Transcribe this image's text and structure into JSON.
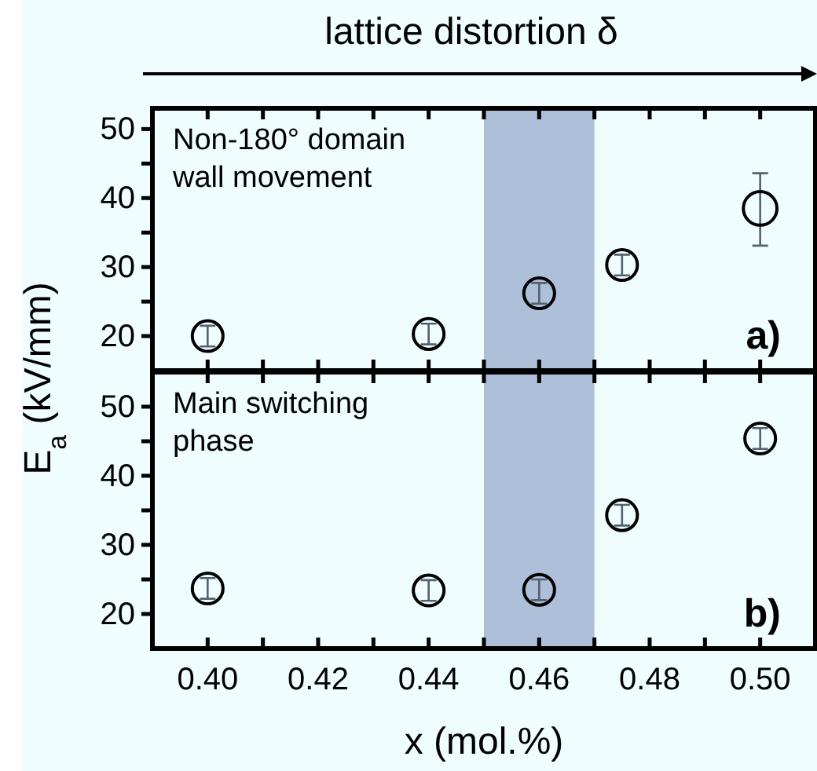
{
  "chart_data": [
    {
      "type": "scatter",
      "title": "lattice distortion δ",
      "annotations": [
        "Non-180° domain\nwall movement",
        "a)"
      ],
      "x": [
        0.4,
        0.44,
        0.46,
        0.475,
        0.5
      ],
      "marker": "circle",
      "tick_labels": "y",
      "xlim": [
        0.39,
        0.51
      ],
      "ylim": [
        15,
        53
      ],
      "xticks": [
        {
          "value": 0.39,
          "label": null
        },
        {
          "value": 0.4,
          "label": null
        },
        {
          "value": 0.41,
          "label": null
        },
        {
          "value": 0.42,
          "label": null
        },
        {
          "value": 0.43,
          "label": null
        },
        {
          "value": 0.44,
          "label": null
        },
        {
          "value": 0.45,
          "label": null
        },
        {
          "value": 0.46,
          "label": null
        },
        {
          "value": 0.47,
          "label": null
        },
        {
          "value": 0.48,
          "label": null
        },
        {
          "value": 0.49,
          "label": null
        },
        {
          "value": 0.5,
          "label": null
        }
      ],
      "yticks": [
        20,
        {
          "value": 25,
          "label": null
        },
        30,
        {
          "value": 35,
          "label": null
        },
        40,
        {
          "value": 45,
          "label": null
        },
        50
      ],
      "bands": [
        {
          "axis": "x",
          "from": 0.45,
          "to": 0.47,
          "color": "#aebfd9"
        }
      ],
      "series": [
        {
          "color": "#000000",
          "values": [
            20,
            20.3,
            26.2,
            30.3,
            38.5
          ],
          "errors": [
            1.5,
            1.5,
            1.5,
            1.5,
            [
              33.1,
              43.6
            ]
          ]
        }
      ]
    },
    {
      "type": "scatter",
      "xlabel": "x (mol.%)",
      "ylabel": "E$_{a}$ (kV/mm)",
      "annotations": [
        "Main switching\nphase",
        "b)"
      ],
      "x": [
        0.4,
        0.44,
        0.46,
        0.475,
        0.5
      ],
      "marker": "circle",
      "xlim": [
        0.39,
        0.51
      ],
      "ylim": [
        15,
        55
      ],
      "xticks": [
        {
          "value": 0.39,
          "label": null
        },
        {
          "value": 0.4,
          "label": "0.40"
        },
        {
          "value": 0.41,
          "label": null
        },
        {
          "value": 0.42,
          "label": "0.42"
        },
        {
          "value": 0.43,
          "label": null
        },
        {
          "value": 0.44,
          "label": "0.44"
        },
        {
          "value": 0.45,
          "label": null
        },
        {
          "value": 0.46,
          "label": "0.46"
        },
        {
          "value": 0.47,
          "label": null
        },
        {
          "value": 0.48,
          "label": "0.48"
        },
        {
          "value": 0.49,
          "label": null
        },
        {
          "value": 0.5,
          "label": "0.50"
        }
      ],
      "yticks": [
        20,
        {
          "value": 25,
          "label": null
        },
        30,
        {
          "value": 35,
          "label": null
        },
        40,
        {
          "value": 45,
          "label": null
        },
        50
      ],
      "bands": [
        {
          "axis": "x",
          "from": 0.45,
          "to": 0.47,
          "color": "#aebfd9"
        }
      ],
      "series": [
        {
          "color": "#000000",
          "values": [
            23.7,
            23.4,
            23.5,
            34.3,
            45.4
          ],
          "errors": [
            1.5,
            1.5,
            1.5,
            1.5,
            1.5
          ]
        }
      ]
    }
  ]
}
